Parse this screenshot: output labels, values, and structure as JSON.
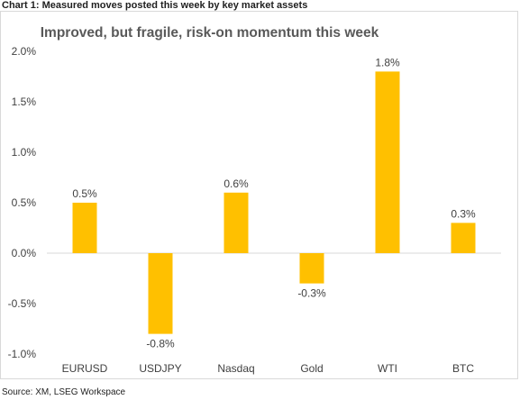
{
  "heading": "Chart 1: Measured moves posted this week by key market assets",
  "source": "Source: XM, LSEG Workspace",
  "chart_data": {
    "type": "bar",
    "title": "Improved, but fragile, risk-on momentum this week",
    "categories": [
      "EURUSD",
      "USDJPY",
      "Nasdaq",
      "Gold",
      "WTI",
      "BTC"
    ],
    "values": [
      0.5,
      -0.8,
      0.6,
      -0.3,
      1.8,
      0.3
    ],
    "data_labels": [
      "0.5%",
      "-0.8%",
      "0.6%",
      "-0.3%",
      "1.8%",
      "0.3%"
    ],
    "yticks": [
      2.0,
      1.5,
      1.0,
      0.5,
      0.0,
      -0.5,
      -1.0
    ],
    "ytick_labels": [
      "2.0%",
      "1.5%",
      "1.0%",
      "0.5%",
      "0.0%",
      "-0.5%",
      "-1.0%"
    ],
    "ylim": [
      -1.0,
      2.0
    ],
    "xlabel": "",
    "ylabel": "",
    "grid": false,
    "bar_color": "#FFC000"
  }
}
